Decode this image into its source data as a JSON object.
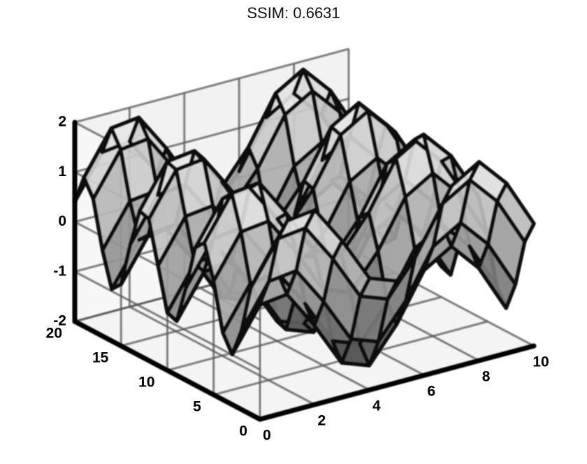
{
  "title": "SSIM: 0.6631",
  "chart_data": {
    "type": "surface",
    "title": "SSIM: 0.6631",
    "xlabel": "",
    "ylabel": "",
    "zlabel": "",
    "xlim": [
      0,
      10
    ],
    "ylim": [
      0,
      20
    ],
    "zlim": [
      -2,
      2
    ],
    "x_ticks": [
      "0",
      "2",
      "4",
      "6",
      "8",
      "10"
    ],
    "y_ticks": [
      "0",
      "5",
      "10",
      "15",
      "20"
    ],
    "z_ticks": [
      "-2",
      "-1",
      "0",
      "1",
      "2"
    ],
    "grid": true,
    "colormap": "grayscale",
    "surface_function": "sin(x) + cos(y)",
    "x_samples": 11,
    "y_samples": 21
  }
}
